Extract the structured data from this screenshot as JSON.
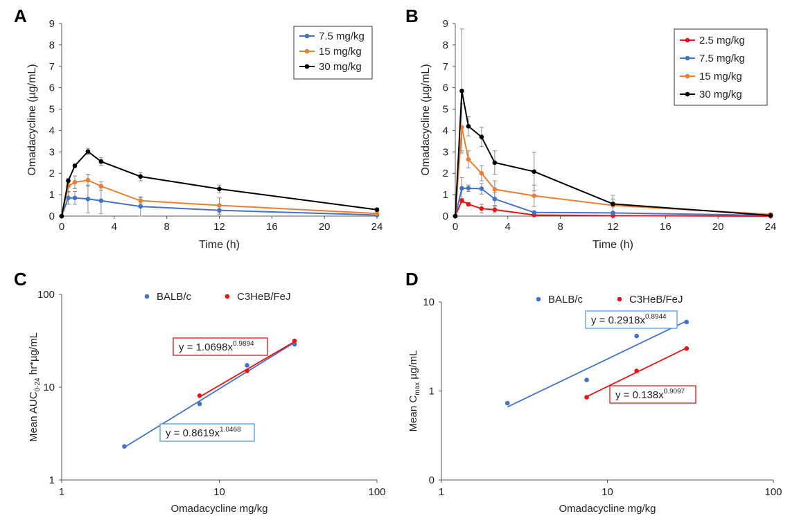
{
  "panels": {
    "a": {
      "letter": "A"
    },
    "b": {
      "letter": "B"
    },
    "c": {
      "letter": "C"
    },
    "d": {
      "letter": "D"
    }
  },
  "chart_data": [
    {
      "id": "A",
      "type": "line",
      "xlabel": "Time (h)",
      "ylabel": "Omadacycline (µg/mL)",
      "xlim": [
        0,
        24
      ],
      "ylim": [
        0,
        9
      ],
      "xticks": [
        0,
        4,
        8,
        12,
        16,
        20,
        24
      ],
      "yticks": [
        0,
        1,
        2,
        3,
        4,
        5,
        6,
        7,
        8,
        9
      ],
      "grid": false,
      "legend_position": "top-right",
      "x": [
        0,
        0.5,
        1,
        2,
        3,
        6,
        12,
        24
      ],
      "series": [
        {
          "name": "7.5 mg/kg",
          "color": "#4472C4",
          "values": [
            0,
            0.85,
            0.85,
            0.8,
            0.72,
            0.45,
            0.27,
            0.05
          ],
          "errors": [
            0,
            0.3,
            0.3,
            0.65,
            0.6,
            0.45,
            0.2,
            0.03
          ]
        },
        {
          "name": "15 mg/kg",
          "color": "#ED7D31",
          "values": [
            0,
            1.4,
            1.58,
            1.68,
            1.4,
            0.72,
            0.5,
            0.12
          ],
          "errors": [
            0,
            0.3,
            0.3,
            0.28,
            0.2,
            0.15,
            0.35,
            0.04
          ]
        },
        {
          "name": "30 mg/kg",
          "color": "#000000",
          "values": [
            0,
            1.65,
            2.35,
            3.02,
            2.55,
            1.85,
            1.27,
            0.3
          ],
          "errors": [
            0,
            0.12,
            0.08,
            0.15,
            0.18,
            0.2,
            0.18,
            0.03
          ]
        }
      ]
    },
    {
      "id": "B",
      "type": "line",
      "xlabel": "Time (h)",
      "ylabel": "Omadacycline (µg/mL)",
      "xlim": [
        0,
        24
      ],
      "ylim": [
        0,
        9
      ],
      "xticks": [
        0,
        4,
        8,
        12,
        16,
        20,
        24
      ],
      "yticks": [
        0,
        1,
        2,
        3,
        4,
        5,
        6,
        7,
        8,
        9
      ],
      "grid": false,
      "legend_position": "top-right",
      "x": [
        0,
        0.5,
        1,
        2,
        3,
        6,
        12,
        24
      ],
      "series": [
        {
          "name": "2.5 mg/kg",
          "color": "#E81416",
          "values": [
            0,
            0.72,
            0.55,
            0.35,
            0.3,
            0.05,
            0.02,
            0.0
          ],
          "errors": [
            0,
            0.1,
            0.08,
            0.2,
            0.15,
            0.02,
            0.01,
            0.0
          ]
        },
        {
          "name": "7.5 mg/kg",
          "color": "#4472C4",
          "values": [
            0,
            1.3,
            1.3,
            1.28,
            0.8,
            0.17,
            0.15,
            0.03
          ],
          "errors": [
            0,
            0.5,
            0.15,
            0.25,
            0.3,
            0.05,
            0.05,
            0.02
          ]
        },
        {
          "name": "15 mg/kg",
          "color": "#ED7D31",
          "values": [
            0,
            4.15,
            2.65,
            2.0,
            1.25,
            0.95,
            0.5,
            0.08
          ],
          "errors": [
            0,
            1.1,
            0.4,
            0.35,
            0.4,
            0.5,
            0.3,
            0.05
          ]
        },
        {
          "name": "30 mg/kg",
          "color": "#000000",
          "values": [
            0,
            5.85,
            4.2,
            3.7,
            2.5,
            2.08,
            0.57,
            0.03
          ],
          "errors": [
            0,
            2.9,
            0.45,
            0.45,
            0.55,
            0.9,
            0.4,
            0.02
          ]
        }
      ]
    },
    {
      "id": "C",
      "type": "scatter",
      "xlabel": "Omadacycline mg/kg",
      "ylabel_main": "Mean AUC",
      "ylabel_sub": "0-24",
      "ylabel_tail": " hr*µg/mL",
      "xscale": "log",
      "yscale": "log",
      "xlim": [
        1,
        100
      ],
      "ylim": [
        1,
        100
      ],
      "xticks": [
        1,
        10,
        100
      ],
      "yticks": [
        1,
        10,
        100
      ],
      "xtick_labels": [
        "1",
        "10",
        "100"
      ],
      "ytick_labels": [
        "1",
        "10",
        "100"
      ],
      "grid": false,
      "legend_position": "top",
      "series": [
        {
          "name": "BALB/c",
          "color": "#4472C4",
          "x": [
            2.5,
            7.5,
            15,
            30
          ],
          "y": [
            2.3,
            6.6,
            17.2,
            29.0
          ],
          "fit": {
            "a": 0.8619,
            "b": 1.0468,
            "xrange": [
              2.5,
              30
            ],
            "label_base": "y = 0.8619x",
            "label_exp": "1.0468"
          }
        },
        {
          "name": "C3HeB/FeJ",
          "color": "#E81416",
          "x": [
            7.5,
            15,
            30
          ],
          "y": [
            8.1,
            15.0,
            31.5
          ],
          "fit": {
            "a": 1.0698,
            "b": 0.9894,
            "xrange": [
              7.5,
              30
            ],
            "label_base": "y = 1.0698x",
            "label_exp": "0.9894"
          }
        }
      ]
    },
    {
      "id": "D",
      "type": "scatter",
      "xlabel": "Omadacycline mg/kg",
      "ylabel_main": "Mean C",
      "ylabel_sub": "max",
      "ylabel_tail": " µg/mL",
      "xscale": "log",
      "yscale": "log",
      "xlim": [
        1,
        100
      ],
      "ylim": [
        0.1,
        10
      ],
      "xticks": [
        1,
        10,
        100
      ],
      "yticks": [
        0.1,
        1,
        10
      ],
      "xtick_labels": [
        "1",
        "10",
        "100"
      ],
      "ytick_labels": [
        "0",
        "1",
        "10"
      ],
      "grid": false,
      "legend_position": "top",
      "series": [
        {
          "name": "BALB/c",
          "color": "#4472C4",
          "x": [
            2.5,
            7.5,
            15,
            30
          ],
          "y": [
            0.73,
            1.33,
            4.15,
            5.95
          ],
          "fit": {
            "a": 0.2918,
            "b": 0.8944,
            "xrange": [
              2.5,
              30
            ],
            "label_base": "y = 0.2918x",
            "label_exp": "0.8944"
          }
        },
        {
          "name": "C3HeB/FeJ",
          "color": "#E81416",
          "x": [
            7.5,
            15,
            30
          ],
          "y": [
            0.85,
            1.68,
            3.0
          ],
          "fit": {
            "a": 0.138,
            "b": 0.9097,
            "xrange": [
              7.5,
              30
            ],
            "label_base": "y = 0.138x",
            "label_exp": "0.9097"
          }
        }
      ]
    }
  ]
}
